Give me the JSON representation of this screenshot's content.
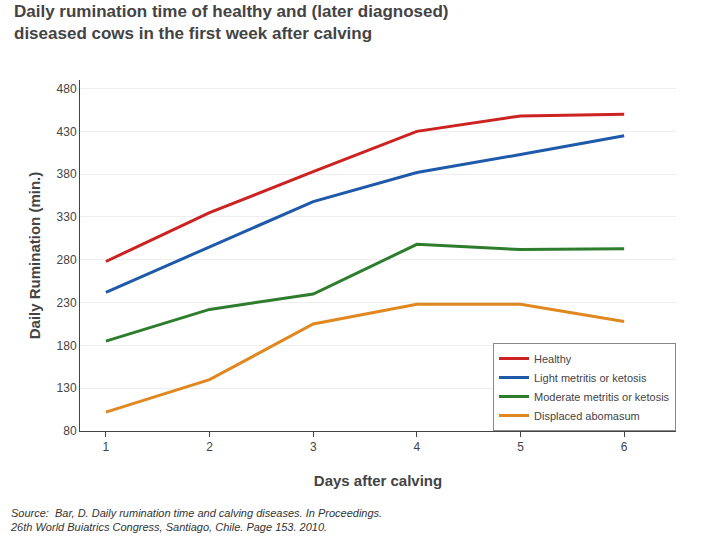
{
  "chart_data": {
    "type": "line",
    "title": "Daily rumination time of healthy and (later diagnosed)\ndiseased cows in the first week after calving",
    "xlabel": "Days after calving",
    "ylabel": "Daily Rumination (min.)",
    "x": [
      1,
      2,
      3,
      4,
      5,
      6
    ],
    "series": [
      {
        "name": "Healthy",
        "color": "#cc2222",
        "values": [
          278,
          335,
          383,
          430,
          448,
          450
        ]
      },
      {
        "name": "Light metritis or ketosis",
        "color": "#1f5aaa",
        "values": [
          242,
          295,
          348,
          382,
          403,
          425
        ]
      },
      {
        "name": "Moderate metritis or ketosis",
        "color": "#2d7d2d",
        "values": [
          185,
          222,
          240,
          298,
          292,
          293
        ]
      },
      {
        "name": "Displaced abomasum",
        "color": "#e08820",
        "values": [
          102,
          140,
          205,
          228,
          228,
          208
        ]
      }
    ],
    "xlim": [
      0.75,
      6.5
    ],
    "xticks": [
      1,
      2,
      3,
      4,
      5,
      6
    ],
    "ylim": [
      80,
      490
    ],
    "yticks": [
      80,
      130,
      180,
      230,
      280,
      330,
      380,
      430,
      480
    ],
    "grid": true,
    "legend": "lower right",
    "annotations": [
      "Source:  Bar, D. Daily rumination time and calving diseases. In Proceedings.\n26th World Buiatrics Congress, Santiago, Chile. Page 153. 2010."
    ]
  }
}
